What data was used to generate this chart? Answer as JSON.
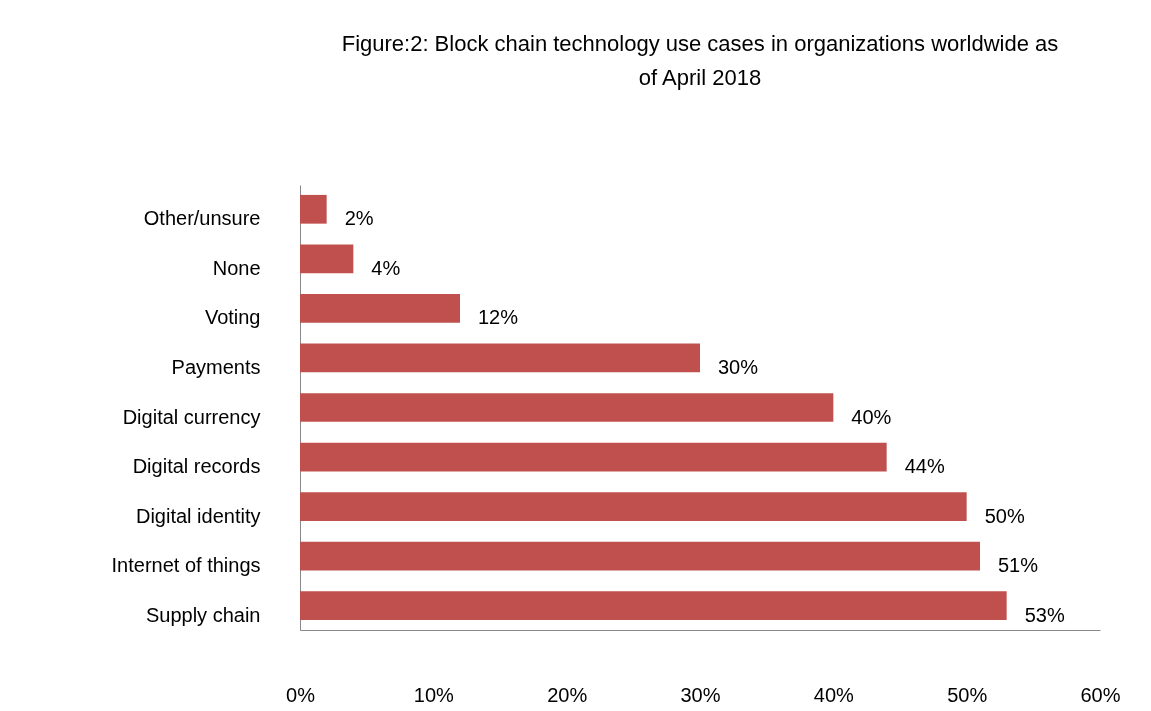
{
  "chart_data": {
    "type": "bar",
    "orientation": "horizontal",
    "title": "Figure:2: Block chain technology use cases in organizations worldwide as of April 2018",
    "categories": [
      "Other/unsure",
      "None",
      "Voting",
      "Payments",
      "Digital currency",
      "Digital records",
      "Digital identity",
      "Internet of things",
      "Supply chain"
    ],
    "values": [
      2,
      4,
      12,
      30,
      40,
      44,
      50,
      51,
      53
    ],
    "value_labels": [
      "2%",
      "4%",
      "12%",
      "30%",
      "40%",
      "44%",
      "50%",
      "51%",
      "53%"
    ],
    "color": "#c0504d",
    "xlim": [
      0,
      60
    ],
    "xticks": [
      {
        "value": 0,
        "label": "0%"
      },
      {
        "value": 10,
        "label": "10%"
      },
      {
        "value": 20,
        "label": "20%"
      },
      {
        "value": 30,
        "label": "30%"
      },
      {
        "value": 40,
        "label": "40%"
      },
      {
        "value": 50,
        "label": "50%"
      },
      {
        "value": 60,
        "label": "60%"
      }
    ],
    "grid": false
  }
}
